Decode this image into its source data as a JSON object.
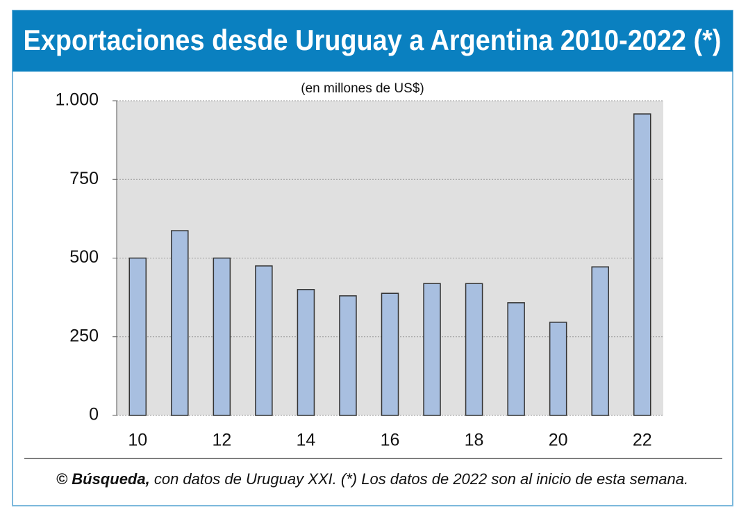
{
  "chart_data": {
    "type": "bar",
    "title": "Exportaciones desde Uruguay a Argentina 2010-2022 (*)",
    "subtitle": "(en millones de US$)",
    "categories": [
      "10",
      null,
      "12",
      null,
      "14",
      null,
      "16",
      null,
      "18",
      null,
      "20",
      null,
      "22"
    ],
    "values": [
      500,
      587,
      500,
      475,
      400,
      380,
      388,
      419,
      419,
      358,
      296,
      472,
      958
    ],
    "color": "#a8bfe0",
    "ylim": [
      0,
      1000
    ],
    "yticks": [
      0,
      250,
      500,
      750,
      {
        "value": 1000,
        "label": "1.000"
      }
    ],
    "grid": true,
    "footer": {
      "symbol": "©",
      "source": "Búsqueda,",
      "note": "con datos de Uruguay XXI. (*) Los datos de 2022 son al inicio de esta semana."
    }
  }
}
